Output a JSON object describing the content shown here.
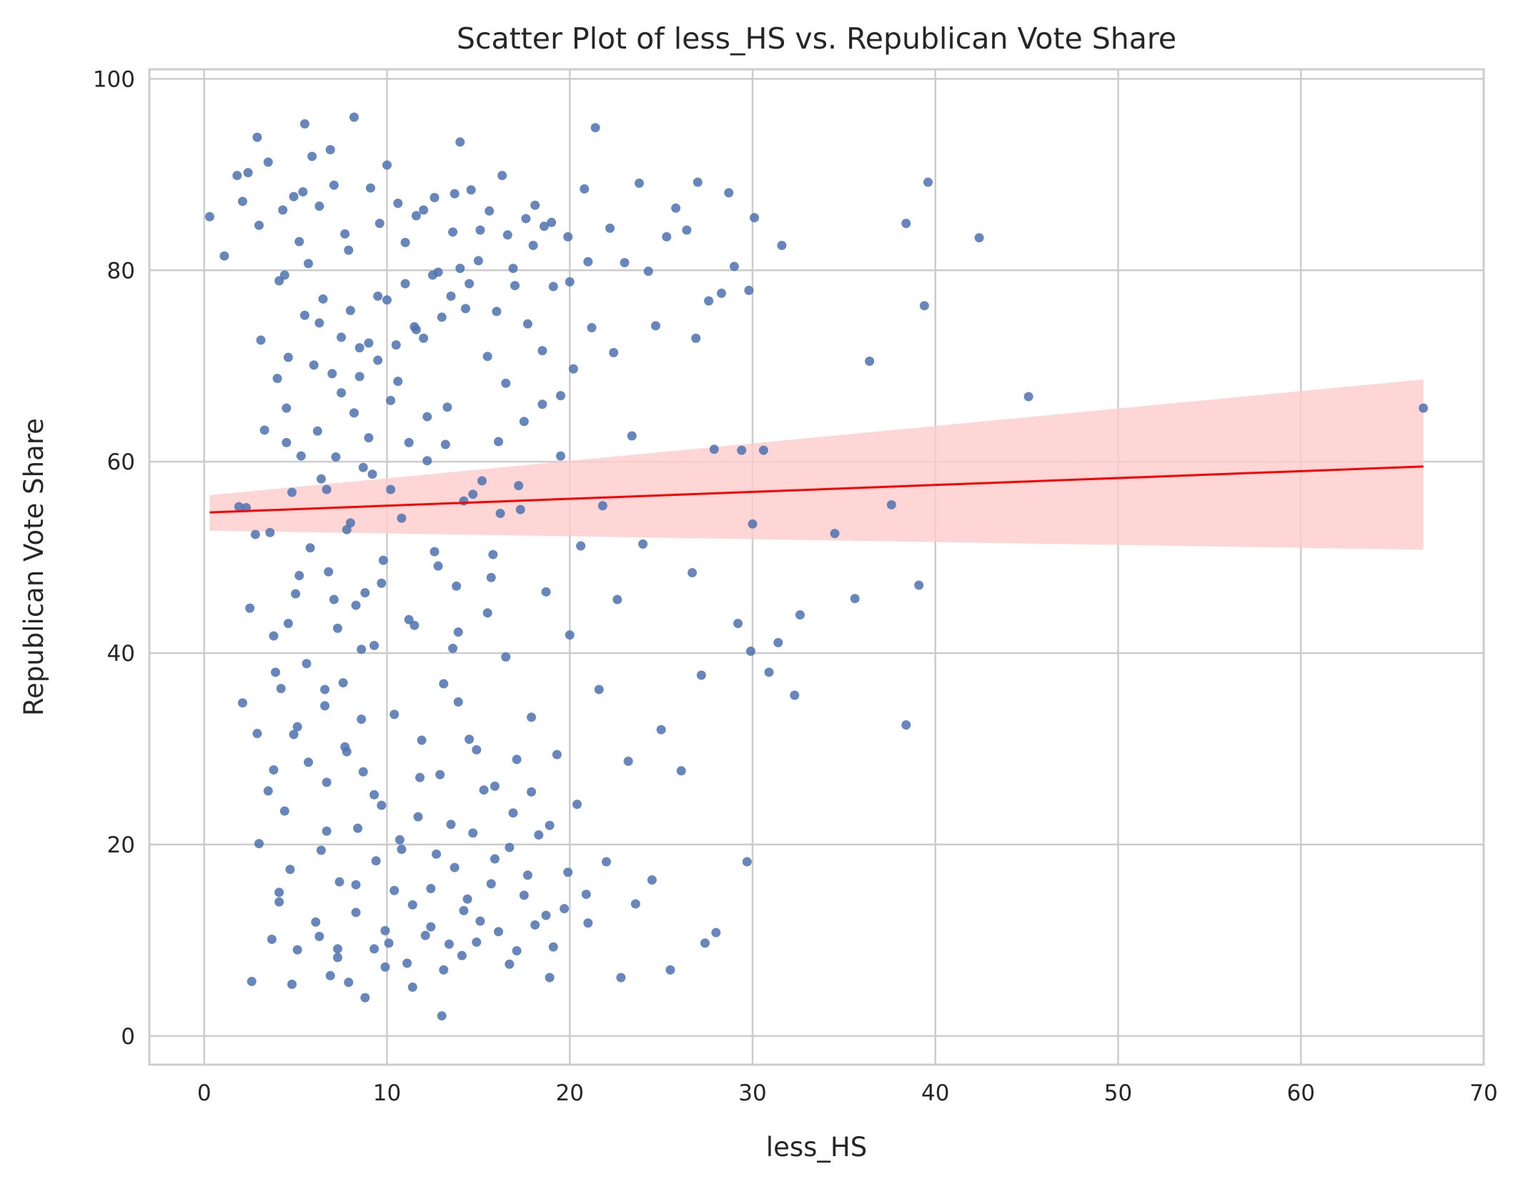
{
  "chart_data": {
    "type": "scatter",
    "title": "Scatter Plot of less_HS vs. Republican Vote Share",
    "xlabel": "less_HS",
    "ylabel": "Republican Vote Share",
    "xlim": [
      -3,
      70
    ],
    "ylim": [
      -3,
      101
    ],
    "xticks": [
      0,
      10,
      20,
      30,
      40,
      50,
      60,
      70
    ],
    "yticks": [
      0,
      20,
      40,
      60,
      80,
      100
    ],
    "grid": true,
    "legend": "none",
    "colors": {
      "points": "#4c72b0",
      "regression": "#ff0000",
      "confidence_band": "#ffcccc",
      "grid": "#cccccc",
      "spine": "#cccccc"
    },
    "regression": {
      "x": [
        0.3,
        66.7
      ],
      "y": [
        54.7,
        59.5
      ],
      "ci_lower": [
        52.8,
        50.8
      ],
      "ci_upper": [
        56.5,
        68.6
      ]
    },
    "points": [
      [
        0.3,
        85.6
      ],
      [
        1.1,
        81.5
      ],
      [
        1.8,
        89.9
      ],
      [
        1.9,
        55.3
      ],
      [
        2.1,
        34.8
      ],
      [
        2.1,
        87.2
      ],
      [
        2.3,
        55.2
      ],
      [
        2.4,
        90.2
      ],
      [
        2.5,
        44.7
      ],
      [
        2.6,
        5.7
      ],
      [
        2.8,
        52.4
      ],
      [
        2.9,
        31.6
      ],
      [
        2.9,
        93.9
      ],
      [
        3.0,
        84.7
      ],
      [
        3.0,
        20.1
      ],
      [
        3.1,
        72.7
      ],
      [
        3.3,
        63.3
      ],
      [
        3.5,
        91.3
      ],
      [
        3.6,
        52.6
      ],
      [
        3.8,
        27.8
      ],
      [
        3.9,
        38.0
      ],
      [
        4.0,
        68.7
      ],
      [
        4.1,
        14.0
      ],
      [
        4.1,
        78.9
      ],
      [
        4.3,
        86.3
      ],
      [
        4.4,
        23.5
      ],
      [
        4.5,
        65.6
      ],
      [
        4.6,
        43.1
      ],
      [
        4.7,
        17.4
      ],
      [
        4.8,
        5.4
      ],
      [
        4.9,
        87.7
      ],
      [
        5.1,
        32.3
      ],
      [
        5.2,
        48.1
      ],
      [
        5.3,
        60.6
      ],
      [
        5.5,
        95.3
      ],
      [
        5.7,
        80.7
      ],
      [
        5.9,
        91.9
      ],
      [
        6.1,
        11.9
      ],
      [
        6.3,
        74.5
      ],
      [
        6.4,
        58.2
      ],
      [
        6.6,
        36.2
      ],
      [
        6.7,
        21.4
      ],
      [
        6.9,
        92.6
      ],
      [
        7.1,
        45.6
      ],
      [
        7.3,
        9.1
      ],
      [
        7.5,
        67.2
      ],
      [
        7.7,
        83.8
      ],
      [
        7.8,
        29.7
      ],
      [
        8.0,
        53.6
      ],
      [
        8.2,
        96.0
      ],
      [
        8.3,
        15.8
      ],
      [
        8.5,
        71.9
      ],
      [
        8.6,
        40.4
      ],
      [
        8.8,
        4.0
      ],
      [
        9.0,
        62.5
      ],
      [
        9.1,
        88.6
      ],
      [
        9.3,
        25.2
      ],
      [
        9.5,
        77.3
      ],
      [
        9.7,
        47.3
      ],
      [
        9.9,
        11.0
      ],
      [
        10.0,
        91.0
      ],
      [
        10.2,
        57.1
      ],
      [
        10.4,
        33.6
      ],
      [
        10.6,
        68.4
      ],
      [
        10.8,
        19.5
      ],
      [
        11.0,
        82.9
      ],
      [
        11.2,
        43.5
      ],
      [
        11.4,
        5.1
      ],
      [
        11.6,
        73.8
      ],
      [
        11.8,
        27.0
      ],
      [
        12.0,
        86.3
      ],
      [
        12.2,
        60.1
      ],
      [
        12.4,
        15.4
      ],
      [
        12.6,
        50.6
      ],
      [
        12.8,
        79.8
      ],
      [
        13.0,
        2.1
      ],
      [
        13.1,
        36.8
      ],
      [
        13.3,
        65.7
      ],
      [
        13.5,
        22.1
      ],
      [
        13.7,
        88.0
      ],
      [
        13.9,
        42.2
      ],
      [
        14.0,
        93.4
      ],
      [
        14.2,
        13.1
      ],
      [
        14.3,
        76.0
      ],
      [
        14.5,
        31.0
      ],
      [
        14.7,
        56.6
      ],
      [
        14.9,
        9.8
      ],
      [
        15.1,
        84.2
      ],
      [
        15.3,
        25.7
      ],
      [
        15.5,
        71.0
      ],
      [
        15.7,
        47.9
      ],
      [
        15.9,
        18.5
      ],
      [
        16.1,
        62.1
      ],
      [
        16.3,
        89.9
      ],
      [
        16.5,
        39.6
      ],
      [
        16.7,
        7.5
      ],
      [
        16.9,
        80.2
      ],
      [
        17.1,
        28.9
      ],
      [
        17.3,
        55.0
      ],
      [
        17.5,
        14.7
      ],
      [
        17.7,
        74.4
      ],
      [
        17.9,
        33.3
      ],
      [
        18.1,
        86.8
      ],
      [
        18.3,
        21.0
      ],
      [
        18.5,
        66.0
      ],
      [
        18.7,
        46.4
      ],
      [
        18.9,
        6.1
      ],
      [
        19.1,
        78.3
      ],
      [
        19.3,
        29.4
      ],
      [
        19.5,
        60.6
      ],
      [
        19.7,
        13.3
      ],
      [
        19.9,
        83.5
      ],
      [
        20.0,
        41.9
      ],
      [
        20.2,
        69.7
      ],
      [
        20.4,
        24.2
      ],
      [
        20.6,
        51.2
      ],
      [
        20.8,
        88.5
      ],
      [
        21.0,
        11.8
      ],
      [
        21.2,
        74.0
      ],
      [
        21.4,
        94.9
      ],
      [
        21.6,
        36.2
      ],
      [
        21.8,
        55.4
      ],
      [
        22.0,
        18.2
      ],
      [
        22.2,
        84.4
      ],
      [
        22.4,
        71.4
      ],
      [
        22.6,
        45.6
      ],
      [
        22.8,
        6.1
      ],
      [
        23.0,
        80.8
      ],
      [
        23.2,
        28.7
      ],
      [
        23.4,
        62.7
      ],
      [
        23.6,
        13.8
      ],
      [
        23.8,
        89.1
      ],
      [
        24.0,
        51.4
      ],
      [
        24.3,
        79.9
      ],
      [
        24.5,
        16.3
      ],
      [
        24.7,
        74.2
      ],
      [
        25.0,
        32.0
      ],
      [
        25.3,
        83.5
      ],
      [
        25.5,
        6.9
      ],
      [
        25.8,
        86.5
      ],
      [
        26.1,
        27.7
      ],
      [
        26.4,
        84.2
      ],
      [
        26.7,
        48.4
      ],
      [
        26.9,
        72.9
      ],
      [
        27.0,
        89.2
      ],
      [
        27.2,
        37.7
      ],
      [
        27.4,
        9.7
      ],
      [
        27.6,
        76.8
      ],
      [
        27.9,
        61.3
      ],
      [
        28.0,
        10.8
      ],
      [
        28.3,
        77.6
      ],
      [
        28.7,
        88.1
      ],
      [
        29.0,
        80.4
      ],
      [
        29.2,
        43.1
      ],
      [
        29.4,
        61.2
      ],
      [
        29.7,
        18.2
      ],
      [
        29.8,
        77.9
      ],
      [
        29.9,
        40.2
      ],
      [
        30.0,
        53.5
      ],
      [
        30.1,
        85.5
      ],
      [
        30.6,
        61.2
      ],
      [
        30.9,
        38.0
      ],
      [
        31.4,
        41.1
      ],
      [
        31.6,
        82.6
      ],
      [
        32.3,
        35.6
      ],
      [
        32.6,
        44.0
      ],
      [
        34.5,
        52.5
      ],
      [
        35.6,
        45.7
      ],
      [
        36.4,
        70.5
      ],
      [
        37.6,
        55.5
      ],
      [
        38.4,
        32.5
      ],
      [
        38.4,
        84.9
      ],
      [
        39.1,
        47.1
      ],
      [
        39.4,
        76.3
      ],
      [
        39.6,
        89.2
      ],
      [
        42.4,
        83.4
      ],
      [
        45.1,
        66.8
      ],
      [
        66.7,
        65.6
      ],
      [
        5.5,
        75.3
      ],
      [
        6.0,
        70.1
      ],
      [
        6.5,
        77.0
      ],
      [
        7.0,
        69.2
      ],
      [
        7.5,
        73.0
      ],
      [
        8.0,
        75.8
      ],
      [
        8.5,
        68.9
      ],
      [
        9.0,
        72.4
      ],
      [
        9.5,
        70.6
      ],
      [
        10.0,
        76.9
      ],
      [
        10.5,
        72.2
      ],
      [
        11.0,
        78.6
      ],
      [
        11.5,
        74.1
      ],
      [
        12.0,
        72.9
      ],
      [
        12.5,
        79.5
      ],
      [
        13.0,
        75.1
      ],
      [
        13.5,
        77.3
      ],
      [
        14.0,
        80.2
      ],
      [
        14.5,
        78.6
      ],
      [
        15.0,
        81.0
      ],
      [
        6.2,
        63.2
      ],
      [
        7.2,
        60.5
      ],
      [
        8.2,
        65.1
      ],
      [
        9.2,
        58.7
      ],
      [
        10.2,
        66.4
      ],
      [
        11.2,
        62.0
      ],
      [
        12.2,
        64.7
      ],
      [
        13.2,
        61.8
      ],
      [
        6.7,
        57.1
      ],
      [
        8.7,
        59.4
      ],
      [
        5.8,
        51.0
      ],
      [
        6.8,
        48.5
      ],
      [
        7.8,
        52.9
      ],
      [
        8.8,
        46.3
      ],
      [
        9.8,
        49.7
      ],
      [
        10.8,
        54.1
      ],
      [
        7.3,
        42.6
      ],
      [
        8.3,
        45.0
      ],
      [
        9.3,
        40.8
      ],
      [
        5.6,
        38.9
      ],
      [
        6.6,
        34.5
      ],
      [
        7.6,
        36.9
      ],
      [
        8.6,
        33.1
      ],
      [
        5.7,
        28.6
      ],
      [
        6.7,
        26.5
      ],
      [
        7.7,
        30.2
      ],
      [
        8.7,
        27.6
      ],
      [
        9.7,
        24.1
      ],
      [
        10.7,
        20.5
      ],
      [
        11.7,
        22.9
      ],
      [
        12.7,
        19.0
      ],
      [
        13.7,
        17.6
      ],
      [
        14.7,
        21.2
      ],
      [
        15.7,
        15.9
      ],
      [
        16.7,
        19.7
      ],
      [
        17.7,
        16.8
      ],
      [
        18.7,
        12.6
      ],
      [
        6.4,
        19.4
      ],
      [
        7.4,
        16.1
      ],
      [
        8.4,
        21.7
      ],
      [
        9.4,
        18.3
      ],
      [
        10.4,
        15.2
      ],
      [
        11.4,
        13.7
      ],
      [
        12.4,
        11.4
      ],
      [
        13.4,
        9.6
      ],
      [
        14.4,
        14.3
      ],
      [
        6.3,
        10.4
      ],
      [
        7.3,
        8.2
      ],
      [
        8.3,
        12.9
      ],
      [
        9.3,
        9.1
      ],
      [
        4.5,
        62.0
      ],
      [
        4.8,
        56.8
      ],
      [
        5.0,
        46.2
      ],
      [
        4.6,
        70.9
      ],
      [
        4.4,
        79.5
      ],
      [
        5.2,
        83.0
      ],
      [
        5.4,
        88.2
      ],
      [
        6.3,
        86.7
      ],
      [
        7.1,
        88.9
      ],
      [
        7.9,
        82.1
      ],
      [
        16.0,
        75.7
      ],
      [
        17.0,
        78.4
      ],
      [
        18.0,
        82.6
      ],
      [
        19.0,
        85.0
      ],
      [
        20.0,
        78.8
      ],
      [
        21.0,
        80.9
      ],
      [
        16.5,
        68.2
      ],
      [
        17.5,
        64.2
      ],
      [
        18.5,
        71.6
      ],
      [
        19.5,
        66.9
      ],
      [
        14.2,
        55.9
      ],
      [
        15.2,
        58.0
      ],
      [
        16.2,
        54.6
      ],
      [
        17.2,
        57.5
      ],
      [
        12.8,
        49.1
      ],
      [
        13.8,
        47.0
      ],
      [
        15.8,
        50.3
      ],
      [
        11.5,
        42.9
      ],
      [
        13.6,
        40.5
      ],
      [
        15.5,
        44.2
      ],
      [
        11.9,
        30.9
      ],
      [
        12.9,
        27.3
      ],
      [
        13.9,
        34.9
      ],
      [
        14.9,
        29.9
      ],
      [
        15.9,
        26.1
      ],
      [
        16.9,
        23.3
      ],
      [
        17.9,
        25.5
      ],
      [
        18.9,
        22.0
      ],
      [
        19.9,
        17.1
      ],
      [
        20.9,
        14.8
      ],
      [
        10.1,
        9.7
      ],
      [
        11.1,
        7.6
      ],
      [
        12.1,
        10.5
      ],
      [
        13.1,
        6.9
      ],
      [
        14.1,
        8.4
      ],
      [
        15.1,
        12.0
      ],
      [
        16.1,
        10.9
      ],
      [
        17.1,
        8.9
      ],
      [
        18.1,
        11.6
      ],
      [
        19.1,
        9.3
      ],
      [
        9.6,
        84.9
      ],
      [
        10.6,
        87.0
      ],
      [
        11.6,
        85.7
      ],
      [
        12.6,
        87.6
      ],
      [
        13.6,
        84.0
      ],
      [
        14.6,
        88.4
      ],
      [
        15.6,
        86.2
      ],
      [
        16.6,
        83.7
      ],
      [
        17.6,
        85.4
      ],
      [
        18.6,
        84.6
      ],
      [
        3.8,
        41.8
      ],
      [
        4.2,
        36.3
      ],
      [
        4.9,
        31.5
      ],
      [
        3.5,
        25.6
      ],
      [
        4.1,
        15.0
      ],
      [
        3.7,
        10.1
      ],
      [
        5.1,
        9.0
      ],
      [
        6.9,
        6.3
      ],
      [
        7.9,
        5.6
      ],
      [
        9.9,
        7.2
      ]
    ]
  }
}
